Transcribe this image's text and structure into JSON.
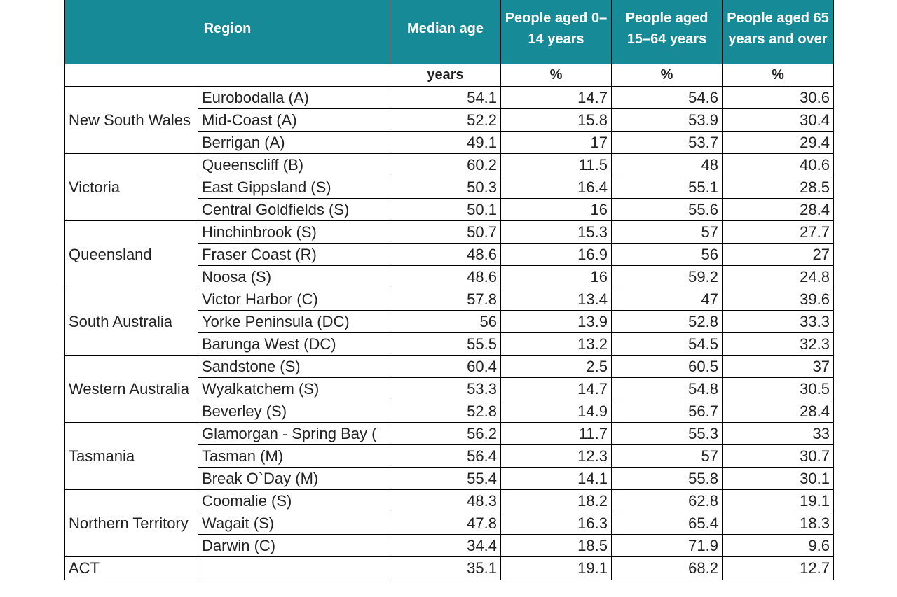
{
  "table": {
    "header": [
      "Region",
      "Median age",
      "People aged 0–14 years",
      "People aged 15–64 years",
      "People aged 65 years and over"
    ],
    "units": [
      "years",
      "%",
      "%",
      "%"
    ],
    "groups": [
      {
        "state": "New South Wales",
        "rows": [
          {
            "area": "Eurobodalla (A)",
            "values": [
              54.1,
              14.7,
              54.6,
              30.6
            ]
          },
          {
            "area": "Mid-Coast (A)",
            "values": [
              52.2,
              15.8,
              53.9,
              30.4
            ]
          },
          {
            "area": "Berrigan (A)",
            "values": [
              49.1,
              17,
              53.7,
              29.4
            ]
          }
        ]
      },
      {
        "state": "Victoria",
        "rows": [
          {
            "area": "Queenscliff (B)",
            "values": [
              60.2,
              11.5,
              48,
              40.6
            ]
          },
          {
            "area": "East Gippsland (S)",
            "values": [
              50.3,
              16.4,
              55.1,
              28.5
            ]
          },
          {
            "area": "Central Goldfields (S)",
            "values": [
              50.1,
              16,
              55.6,
              28.4
            ]
          }
        ]
      },
      {
        "state": "Queensland",
        "rows": [
          {
            "area": "Hinchinbrook (S)",
            "values": [
              50.7,
              15.3,
              57,
              27.7
            ]
          },
          {
            "area": "Fraser Coast (R)",
            "values": [
              48.6,
              16.9,
              56,
              27
            ]
          },
          {
            "area": "Noosa (S)",
            "values": [
              48.6,
              16,
              59.2,
              24.8
            ]
          }
        ]
      },
      {
        "state": "South Australia",
        "rows": [
          {
            "area": "Victor Harbor (C)",
            "values": [
              57.8,
              13.4,
              47,
              39.6
            ]
          },
          {
            "area": "Yorke Peninsula (DC)",
            "values": [
              56,
              13.9,
              52.8,
              33.3
            ]
          },
          {
            "area": "Barunga West (DC)",
            "values": [
              55.5,
              13.2,
              54.5,
              32.3
            ]
          }
        ]
      },
      {
        "state": "Western Australia",
        "rows": [
          {
            "area": "Sandstone (S)",
            "values": [
              60.4,
              2.5,
              60.5,
              37
            ]
          },
          {
            "area": "Wyalkatchem (S)",
            "values": [
              53.3,
              14.7,
              54.8,
              30.5
            ]
          },
          {
            "area": "Beverley (S)",
            "values": [
              52.8,
              14.9,
              56.7,
              28.4
            ]
          }
        ]
      },
      {
        "state": "Tasmania",
        "rows": [
          {
            "area": "Glamorgan - Spring Bay (",
            "values": [
              56.2,
              11.7,
              55.3,
              33
            ]
          },
          {
            "area": "Tasman (M)",
            "values": [
              56.4,
              12.3,
              57,
              30.7
            ]
          },
          {
            "area": "Break O`Day (M)",
            "values": [
              55.4,
              14.1,
              55.8,
              30.1
            ]
          }
        ]
      },
      {
        "state": "Northern Territory",
        "rows": [
          {
            "area": "Coomalie (S)",
            "values": [
              48.3,
              18.2,
              62.8,
              19.1
            ]
          },
          {
            "area": "Wagait (S)",
            "values": [
              47.8,
              16.3,
              65.4,
              18.3
            ]
          },
          {
            "area": "Darwin (C)",
            "values": [
              34.4,
              18.5,
              71.9,
              9.6
            ]
          }
        ]
      },
      {
        "state": "ACT",
        "rows": [
          {
            "values": [
              35.1,
              19.1,
              68.2,
              12.7
            ]
          }
        ]
      }
    ]
  }
}
